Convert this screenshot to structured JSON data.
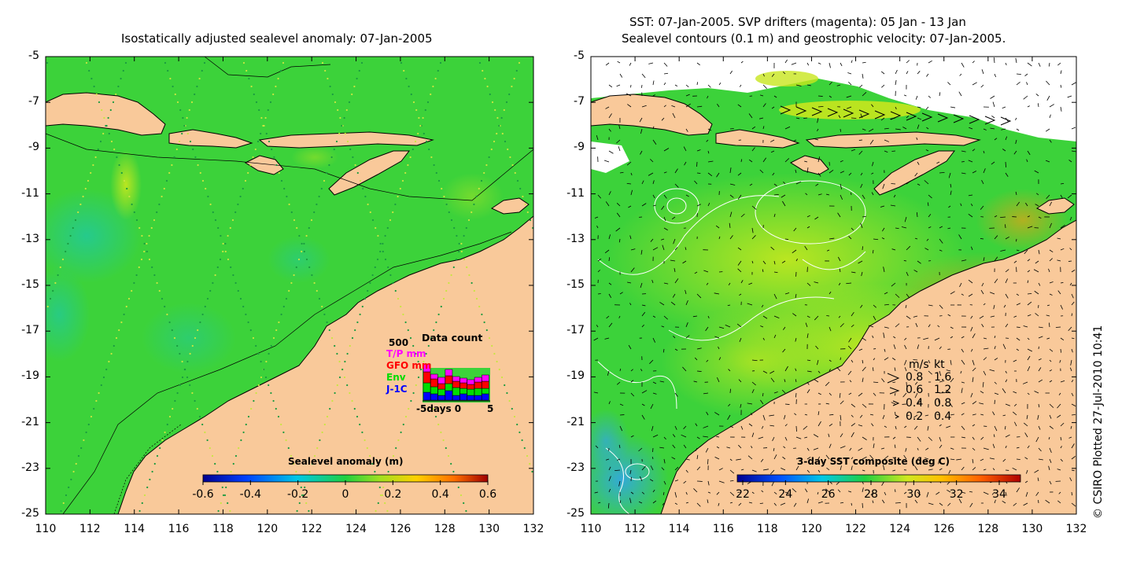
{
  "left_panel": {
    "title": "Isostatically adjusted sealevel anomaly: 07-Jan-2005",
    "colorbar_label": "Sealevel anomaly (m)",
    "colorbar_ticks": [
      "-0.6",
      "-0.4",
      "-0.2",
      "0",
      "0.2",
      "0.4",
      "0.6"
    ],
    "y_ticks": [
      "-5",
      "-7",
      "-9",
      "-11",
      "-13",
      "-15",
      "-17",
      "-19",
      "-21",
      "-23",
      "-25"
    ],
    "x_ticks": [
      "110",
      "112",
      "114",
      "116",
      "118",
      "120",
      "122",
      "124",
      "126",
      "128",
      "130",
      "132"
    ],
    "data_count": {
      "title": "Data count",
      "max": "500",
      "legend": [
        {
          "label": "T/P mm",
          "color": "#ff00ff"
        },
        {
          "label": "GFO mm",
          "color": "#ff0000"
        },
        {
          "label": "Env",
          "color": "#00dd00"
        },
        {
          "label": "J-1C",
          "color": "#0000ff"
        }
      ],
      "x_label": "-5days 0",
      "x_end": "5"
    }
  },
  "right_panel": {
    "title_line1": "SST: 07-Jan-2005. SVP drifters (magenta): 05 Jan - 13 Jan",
    "title_line2": "Sealevel contours (0.1 m) and geostrophic velocity: 07-Jan-2005.",
    "colorbar_label": "3-day SST composite (deg C)",
    "colorbar_ticks": [
      "22",
      "24",
      "26",
      "28",
      "30",
      "32",
      "34"
    ],
    "y_ticks": [
      "-5",
      "-7",
      "-9",
      "-11",
      "-13",
      "-15",
      "-17",
      "-19",
      "-21",
      "-23",
      "-25"
    ],
    "x_ticks": [
      "110",
      "112",
      "114",
      "116",
      "118",
      "120",
      "122",
      "124",
      "126",
      "128",
      "130",
      "132"
    ],
    "velocity_legend": {
      "header_ms": "m/s",
      "header_kt": "kt",
      "rows": [
        {
          "ms": "0.8",
          "kt": "1.6"
        },
        {
          "ms": "0.6",
          "kt": "1.2"
        },
        {
          "ms": "0.4",
          "kt": "0.8"
        },
        {
          "ms": "0.2",
          "kt": "0.4"
        }
      ]
    }
  },
  "credit": "© CSIRO Plotted 27-Jul-2010 10:41",
  "colors": {
    "land": "#f9c99a",
    "ocean_green": "#2fd23a",
    "sst_yellow": "#c8e61e"
  }
}
